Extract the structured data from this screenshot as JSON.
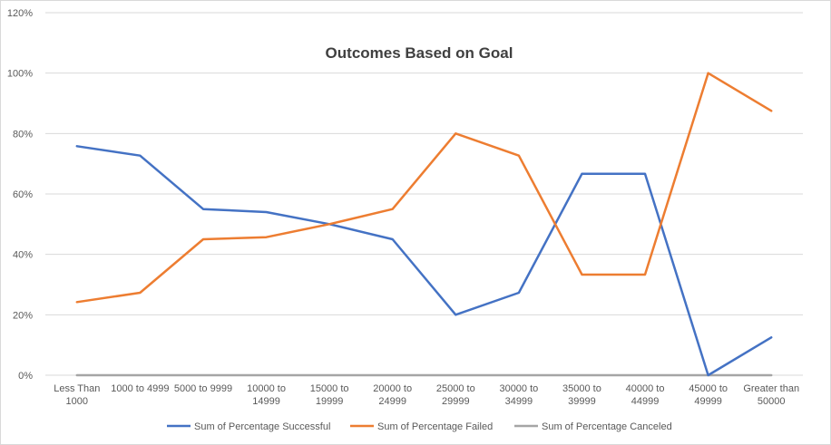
{
  "chart_data": {
    "type": "line",
    "title": "Outcomes Based on Goal",
    "xlabel": "",
    "ylabel": "",
    "ylim": [
      0,
      120
    ],
    "yticks": [
      "0%",
      "20%",
      "40%",
      "60%",
      "80%",
      "100%",
      "120%"
    ],
    "grid": true,
    "legend_position": "bottom",
    "categories": [
      [
        "Less Than",
        "1000"
      ],
      [
        "1000 to 4999"
      ],
      [
        "5000 to 9999"
      ],
      [
        "10000 to",
        "14999"
      ],
      [
        "15000 to",
        "19999"
      ],
      [
        "20000 to",
        "24999"
      ],
      [
        "25000 to",
        "29999"
      ],
      [
        "30000 to",
        "34999"
      ],
      [
        "35000 to",
        "39999"
      ],
      [
        "40000 to",
        "44999"
      ],
      [
        "45000 to",
        "49999"
      ],
      [
        "Greater than",
        "50000"
      ]
    ],
    "series": [
      {
        "name": "Sum of Percentage Successful",
        "color": "#4472C4",
        "values": [
          75.8,
          72.7,
          55.0,
          54.0,
          50.0,
          45.0,
          20.0,
          27.3,
          66.7,
          66.7,
          0.0,
          12.5
        ]
      },
      {
        "name": "Sum of Percentage Failed",
        "color": "#ED7D31",
        "values": [
          24.2,
          27.3,
          45.0,
          45.7,
          50.0,
          55.0,
          80.0,
          72.7,
          33.3,
          33.3,
          100.0,
          87.5
        ]
      },
      {
        "name": "Sum of Percentage Canceled",
        "color": "#A5A5A5",
        "values": [
          0,
          0,
          0,
          0,
          0,
          0,
          0,
          0,
          0,
          0,
          0,
          0
        ]
      }
    ]
  }
}
